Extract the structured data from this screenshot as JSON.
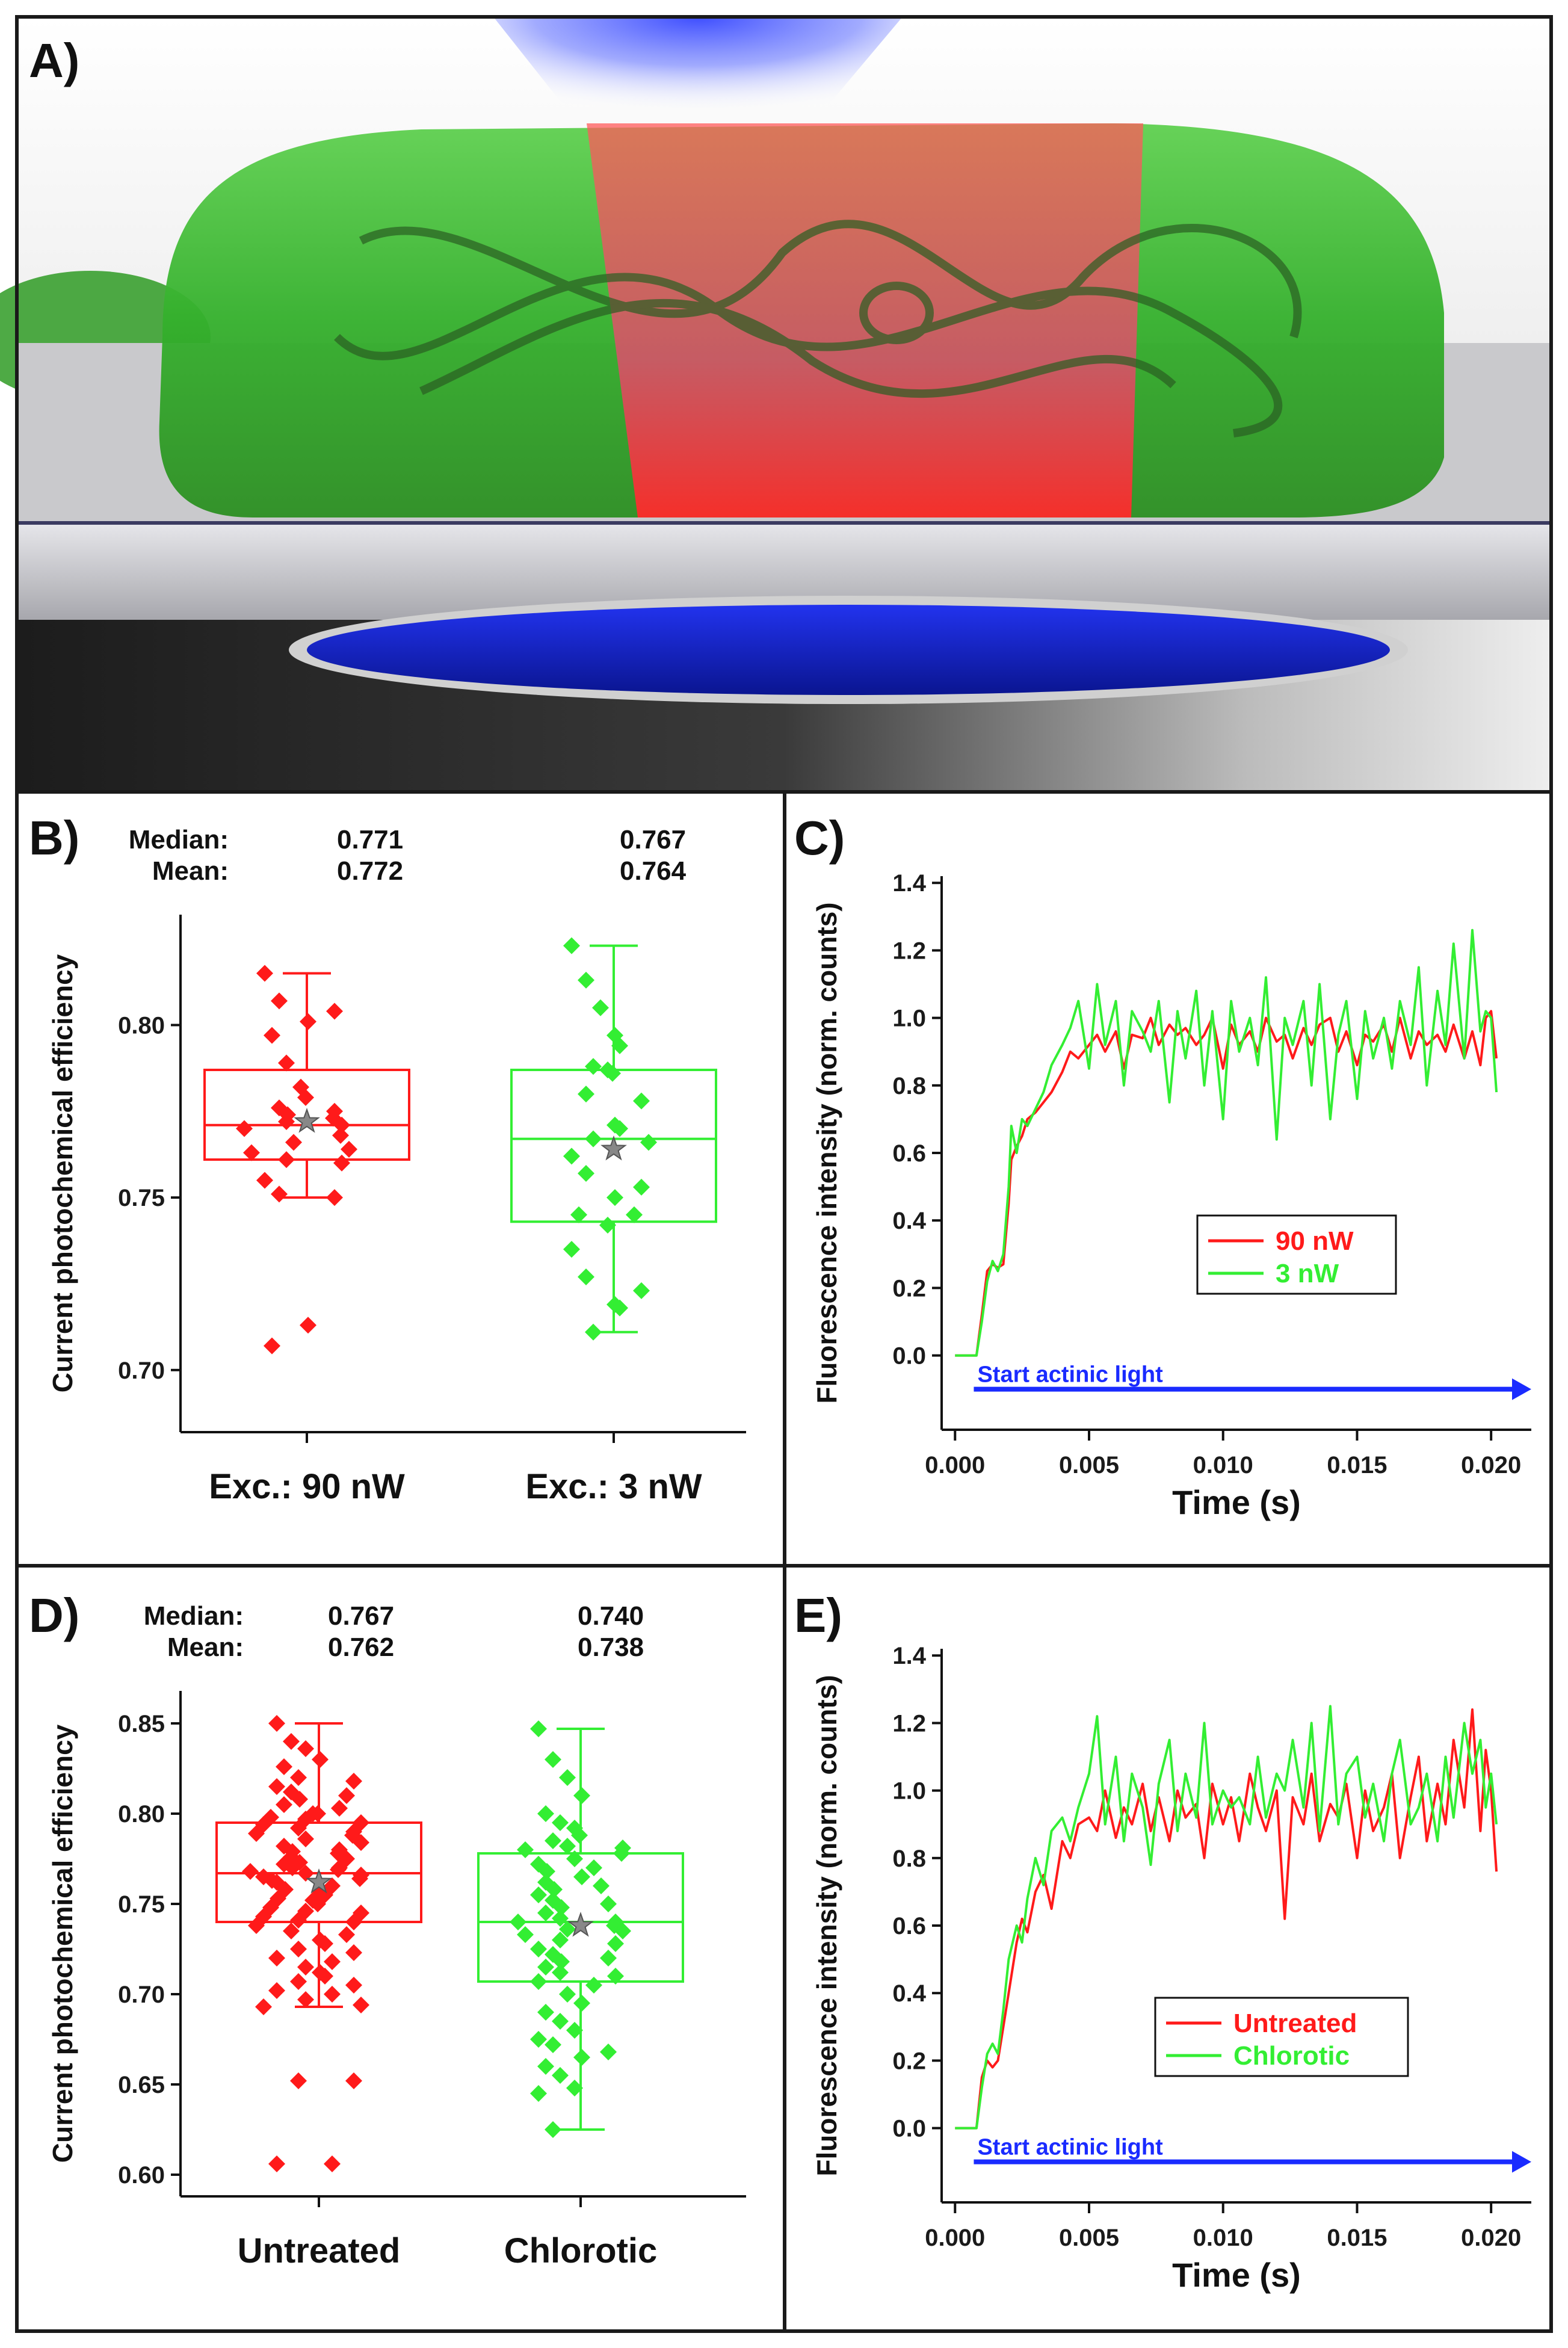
{
  "colors": {
    "red": "#ff1a1a",
    "green": "#33ee33",
    "blue": "#1a2bff",
    "marker_star": "#888888"
  },
  "panel_a": {
    "letter": "A)",
    "image_description_icon": "3d-cell-illustration-icon"
  },
  "chart_data": [
    {
      "id": "B",
      "type": "box",
      "letter": "B)",
      "ylabel": "Current photochemical efficiency",
      "ylim": [
        0.682,
        0.832
      ],
      "yticks": [
        0.7,
        0.75,
        0.8
      ],
      "ytick_labels": [
        "0.70",
        "0.75",
        "0.80"
      ],
      "stat_labels": {
        "median": "Median:",
        "mean": "Mean:"
      },
      "groups": [
        {
          "name": "Exc.: 90 nW",
          "color": "#ff1a1a",
          "median": "0.771",
          "mean": "0.772",
          "median_v": 0.771,
          "mean_v": 0.772,
          "q1": 0.761,
          "q3": 0.787,
          "whisker_low": 0.75,
          "whisker_high": 0.815,
          "points": [
            0.815,
            0.807,
            0.804,
            0.801,
            0.797,
            0.789,
            0.782,
            0.779,
            0.776,
            0.775,
            0.774,
            0.773,
            0.772,
            0.771,
            0.77,
            0.768,
            0.766,
            0.764,
            0.763,
            0.761,
            0.76,
            0.755,
            0.751,
            0.75,
            0.713,
            0.707
          ]
        },
        {
          "name": "Exc.: 3 nW",
          "color": "#33ee33",
          "median": "0.767",
          "mean": "0.764",
          "median_v": 0.767,
          "mean_v": 0.764,
          "q1": 0.743,
          "q3": 0.787,
          "whisker_low": 0.711,
          "whisker_high": 0.823,
          "points": [
            0.823,
            0.813,
            0.805,
            0.797,
            0.794,
            0.788,
            0.787,
            0.786,
            0.78,
            0.778,
            0.771,
            0.77,
            0.767,
            0.766,
            0.762,
            0.757,
            0.753,
            0.75,
            0.745,
            0.745,
            0.742,
            0.735,
            0.727,
            0.723,
            0.719,
            0.718,
            0.711
          ]
        }
      ]
    },
    {
      "id": "C",
      "type": "line",
      "letter": "C)",
      "xlabel": "Time (s)",
      "ylabel": "Fluorescence intensity (norm. counts)",
      "xlim": [
        -0.0005,
        0.0215
      ],
      "ylim": [
        -0.22,
        1.42
      ],
      "xticks": [
        0.0,
        0.005,
        0.01,
        0.015,
        0.02
      ],
      "xtick_labels": [
        "0.000",
        "0.005",
        "0.010",
        "0.015",
        "0.020"
      ],
      "yticks": [
        0.0,
        0.2,
        0.4,
        0.6,
        0.8,
        1.0,
        1.2,
        1.4
      ],
      "ytick_labels": [
        "0.0",
        "0.2",
        "0.4",
        "0.6",
        "0.8",
        "1.0",
        "1.2",
        "1.4"
      ],
      "annotation": "Start actinic light",
      "annotation_y": -0.1,
      "annotation_x": [
        0.0007,
        0.0215
      ],
      "legend_position": "center-right",
      "series": [
        {
          "name": "90 nW",
          "color": "#ff1a1a",
          "x": [
            0.0,
            0.0005,
            0.0008,
            0.001,
            0.0012,
            0.0014,
            0.0016,
            0.0018,
            0.002,
            0.0021,
            0.0023,
            0.0025,
            0.0027,
            0.003,
            0.0033,
            0.0036,
            0.004,
            0.0043,
            0.0046,
            0.005,
            0.0053,
            0.0056,
            0.006,
            0.0063,
            0.0066,
            0.007,
            0.0073,
            0.0076,
            0.008,
            0.0083,
            0.0086,
            0.009,
            0.0093,
            0.0096,
            0.01,
            0.0103,
            0.0106,
            0.011,
            0.0113,
            0.0116,
            0.012,
            0.0123,
            0.0126,
            0.013,
            0.0133,
            0.0136,
            0.014,
            0.0143,
            0.0146,
            0.015,
            0.0153,
            0.0156,
            0.016,
            0.0163,
            0.0166,
            0.017,
            0.0173,
            0.0176,
            0.018,
            0.0183,
            0.0186,
            0.019,
            0.0193,
            0.0196,
            0.0198,
            0.02,
            0.0202
          ],
          "y": [
            0.0,
            0.0,
            0.0,
            0.12,
            0.25,
            0.27,
            0.26,
            0.27,
            0.45,
            0.58,
            0.62,
            0.65,
            0.7,
            0.72,
            0.75,
            0.78,
            0.84,
            0.9,
            0.88,
            0.92,
            0.95,
            0.9,
            0.96,
            0.85,
            0.95,
            0.94,
            1.0,
            0.92,
            0.98,
            0.95,
            0.97,
            0.92,
            0.95,
            1.0,
            0.85,
            0.98,
            0.92,
            0.96,
            0.9,
            1.0,
            0.93,
            0.95,
            0.88,
            0.97,
            0.92,
            0.98,
            1.0,
            0.9,
            0.96,
            0.86,
            0.95,
            0.93,
            0.98,
            0.9,
            1.0,
            0.88,
            0.96,
            0.92,
            0.95,
            0.9,
            0.98,
            0.88,
            0.96,
            0.86,
            1.0,
            1.02,
            0.88
          ]
        },
        {
          "name": "3 nW",
          "color": "#33ee33",
          "x": [
            0.0,
            0.0005,
            0.0008,
            0.001,
            0.0012,
            0.0014,
            0.0016,
            0.0018,
            0.002,
            0.0021,
            0.0023,
            0.0025,
            0.0027,
            0.003,
            0.0033,
            0.0036,
            0.004,
            0.0043,
            0.0046,
            0.005,
            0.0053,
            0.0056,
            0.006,
            0.0063,
            0.0066,
            0.007,
            0.0073,
            0.0076,
            0.008,
            0.0083,
            0.0086,
            0.009,
            0.0093,
            0.0096,
            0.01,
            0.0103,
            0.0106,
            0.011,
            0.0113,
            0.0116,
            0.012,
            0.0123,
            0.0126,
            0.013,
            0.0133,
            0.0136,
            0.014,
            0.0143,
            0.0146,
            0.015,
            0.0153,
            0.0156,
            0.016,
            0.0163,
            0.0166,
            0.017,
            0.0173,
            0.0176,
            0.018,
            0.0183,
            0.0186,
            0.019,
            0.0193,
            0.0196,
            0.0198,
            0.02,
            0.0202
          ],
          "y": [
            0.0,
            0.0,
            0.0,
            0.1,
            0.22,
            0.28,
            0.25,
            0.3,
            0.5,
            0.68,
            0.6,
            0.7,
            0.68,
            0.73,
            0.78,
            0.86,
            0.92,
            0.97,
            1.05,
            0.85,
            1.1,
            0.92,
            1.05,
            0.8,
            1.02,
            0.96,
            0.9,
            1.05,
            0.75,
            1.02,
            0.88,
            1.08,
            0.8,
            1.02,
            0.7,
            1.05,
            0.9,
            1.0,
            0.86,
            1.12,
            0.64,
            1.0,
            0.92,
            1.05,
            0.8,
            1.1,
            0.7,
            0.95,
            1.05,
            0.76,
            1.02,
            0.88,
            1.0,
            0.85,
            1.05,
            0.92,
            1.15,
            0.8,
            1.08,
            0.92,
            1.22,
            0.88,
            1.26,
            0.96,
            1.02,
            1.0,
            0.78
          ]
        }
      ]
    },
    {
      "id": "D",
      "type": "box",
      "letter": "D)",
      "ylabel": "Current photochemical efficiency",
      "ylim": [
        0.588,
        0.868
      ],
      "yticks": [
        0.6,
        0.65,
        0.7,
        0.75,
        0.8,
        0.85
      ],
      "ytick_labels": [
        "0.60",
        "0.65",
        "0.70",
        "0.75",
        "0.80",
        "0.85"
      ],
      "stat_labels": {
        "median": "Median:",
        "mean": "Mean:"
      },
      "groups": [
        {
          "name": "Untreated",
          "color": "#ff1a1a",
          "median": "0.767",
          "mean": "0.762",
          "median_v": 0.767,
          "mean_v": 0.762,
          "q1": 0.74,
          "q3": 0.795,
          "whisker_low": 0.693,
          "whisker_high": 0.85,
          "points": [
            0.85,
            0.84,
            0.836,
            0.83,
            0.826,
            0.82,
            0.818,
            0.815,
            0.812,
            0.81,
            0.808,
            0.805,
            0.803,
            0.8,
            0.8,
            0.798,
            0.797,
            0.795,
            0.794,
            0.792,
            0.79,
            0.789,
            0.788,
            0.786,
            0.784,
            0.782,
            0.78,
            0.779,
            0.778,
            0.776,
            0.775,
            0.773,
            0.772,
            0.77,
            0.77,
            0.769,
            0.768,
            0.767,
            0.766,
            0.765,
            0.764,
            0.763,
            0.762,
            0.76,
            0.758,
            0.757,
            0.755,
            0.753,
            0.752,
            0.75,
            0.748,
            0.746,
            0.745,
            0.743,
            0.741,
            0.74,
            0.738,
            0.735,
            0.733,
            0.73,
            0.728,
            0.725,
            0.723,
            0.72,
            0.718,
            0.715,
            0.712,
            0.71,
            0.707,
            0.705,
            0.702,
            0.7,
            0.697,
            0.694,
            0.693,
            0.652,
            0.652,
            0.606,
            0.606
          ]
        },
        {
          "name": "Chlorotic",
          "color": "#33ee33",
          "median": "0.740",
          "mean": "0.738",
          "median_v": 0.74,
          "mean_v": 0.738,
          "q1": 0.707,
          "q3": 0.778,
          "whisker_low": 0.625,
          "whisker_high": 0.847,
          "points": [
            0.847,
            0.83,
            0.82,
            0.81,
            0.8,
            0.795,
            0.792,
            0.788,
            0.785,
            0.782,
            0.781,
            0.78,
            0.778,
            0.775,
            0.772,
            0.77,
            0.768,
            0.765,
            0.762,
            0.76,
            0.758,
            0.755,
            0.752,
            0.75,
            0.748,
            0.745,
            0.742,
            0.74,
            0.74,
            0.738,
            0.736,
            0.735,
            0.733,
            0.73,
            0.728,
            0.725,
            0.722,
            0.72,
            0.718,
            0.715,
            0.712,
            0.71,
            0.707,
            0.705,
            0.7,
            0.695,
            0.69,
            0.685,
            0.68,
            0.675,
            0.672,
            0.668,
            0.665,
            0.66,
            0.655,
            0.648,
            0.645,
            0.625
          ]
        }
      ]
    },
    {
      "id": "E",
      "type": "line",
      "letter": "E)",
      "xlabel": "Time (s)",
      "ylabel": "Fluorescence intensity (norm. counts)",
      "xlim": [
        -0.0005,
        0.0215
      ],
      "ylim": [
        -0.22,
        1.42
      ],
      "xticks": [
        0.0,
        0.005,
        0.01,
        0.015,
        0.02
      ],
      "xtick_labels": [
        "0.000",
        "0.005",
        "0.010",
        "0.015",
        "0.020"
      ],
      "yticks": [
        0.0,
        0.2,
        0.4,
        0.6,
        0.8,
        1.0,
        1.2,
        1.4
      ],
      "ytick_labels": [
        "0.0",
        "0.2",
        "0.4",
        "0.6",
        "0.8",
        "1.0",
        "1.2",
        "1.4"
      ],
      "annotation": "Start actinic light",
      "annotation_y": -0.1,
      "annotation_x": [
        0.0007,
        0.0215
      ],
      "legend_position": "lower-right",
      "series": [
        {
          "name": "Untreated",
          "color": "#ff1a1a",
          "x": [
            0.0,
            0.0005,
            0.0008,
            0.001,
            0.0012,
            0.0014,
            0.0016,
            0.0018,
            0.002,
            0.0023,
            0.0025,
            0.0027,
            0.003,
            0.0033,
            0.0036,
            0.004,
            0.0043,
            0.0046,
            0.005,
            0.0053,
            0.0056,
            0.006,
            0.0063,
            0.0066,
            0.007,
            0.0073,
            0.0076,
            0.008,
            0.0083,
            0.0086,
            0.009,
            0.0093,
            0.0096,
            0.01,
            0.0103,
            0.0106,
            0.011,
            0.0113,
            0.0116,
            0.012,
            0.0123,
            0.0126,
            0.013,
            0.0133,
            0.0136,
            0.014,
            0.0143,
            0.0146,
            0.015,
            0.0153,
            0.0156,
            0.016,
            0.0163,
            0.0166,
            0.017,
            0.0173,
            0.0176,
            0.018,
            0.0183,
            0.0186,
            0.019,
            0.0193,
            0.0196,
            0.0198,
            0.02,
            0.0202
          ],
          "y": [
            0.0,
            0.0,
            0.0,
            0.15,
            0.2,
            0.18,
            0.2,
            0.3,
            0.4,
            0.55,
            0.62,
            0.58,
            0.7,
            0.75,
            0.65,
            0.85,
            0.8,
            0.9,
            0.92,
            0.88,
            1.0,
            0.86,
            0.95,
            0.9,
            1.02,
            0.88,
            0.98,
            0.85,
            1.0,
            0.92,
            0.96,
            0.8,
            1.02,
            0.9,
            0.98,
            0.85,
            1.05,
            0.95,
            0.88,
            1.0,
            0.62,
            0.98,
            0.9,
            1.05,
            0.85,
            0.96,
            0.92,
            1.02,
            0.8,
            1.0,
            0.88,
            0.95,
            1.05,
            0.8,
            0.98,
            1.1,
            0.85,
            1.02,
            0.9,
            1.15,
            0.95,
            1.24,
            0.88,
            1.12,
            1.0,
            0.76
          ]
        },
        {
          "name": "Chlorotic",
          "color": "#33ee33",
          "x": [
            0.0,
            0.0005,
            0.0008,
            0.001,
            0.0012,
            0.0014,
            0.0016,
            0.0018,
            0.002,
            0.0023,
            0.0025,
            0.0027,
            0.003,
            0.0033,
            0.0036,
            0.004,
            0.0043,
            0.0046,
            0.005,
            0.0053,
            0.0056,
            0.006,
            0.0063,
            0.0066,
            0.007,
            0.0073,
            0.0076,
            0.008,
            0.0083,
            0.0086,
            0.009,
            0.0093,
            0.0096,
            0.01,
            0.0103,
            0.0106,
            0.011,
            0.0113,
            0.0116,
            0.012,
            0.0123,
            0.0126,
            0.013,
            0.0133,
            0.0136,
            0.014,
            0.0143,
            0.0146,
            0.015,
            0.0153,
            0.0156,
            0.016,
            0.0163,
            0.0166,
            0.017,
            0.0173,
            0.0176,
            0.018,
            0.0183,
            0.0186,
            0.019,
            0.0193,
            0.0196,
            0.0198,
            0.02,
            0.0202
          ],
          "y": [
            0.0,
            0.0,
            0.0,
            0.12,
            0.22,
            0.25,
            0.22,
            0.35,
            0.5,
            0.6,
            0.55,
            0.68,
            0.8,
            0.72,
            0.88,
            0.92,
            0.85,
            0.95,
            1.05,
            1.22,
            0.9,
            1.1,
            0.85,
            1.05,
            0.95,
            0.78,
            1.02,
            1.15,
            0.88,
            1.05,
            0.92,
            1.2,
            0.9,
            1.0,
            0.95,
            0.98,
            0.9,
            1.1,
            0.92,
            1.05,
            1.0,
            1.15,
            0.95,
            1.2,
            0.88,
            1.25,
            0.9,
            1.05,
            1.1,
            0.92,
            1.02,
            0.85,
            1.05,
            1.15,
            0.9,
            0.95,
            1.05,
            0.85,
            1.1,
            0.92,
            1.2,
            1.05,
            1.15,
            0.95,
            1.05,
            0.9
          ]
        }
      ]
    }
  ]
}
